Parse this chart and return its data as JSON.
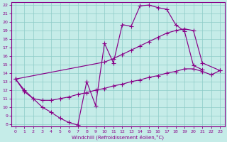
{
  "xlabel": "Windchill (Refroidissement éolien,°C)",
  "xlim": [
    0,
    23
  ],
  "ylim": [
    8,
    22
  ],
  "xticks": [
    0,
    1,
    2,
    3,
    4,
    5,
    6,
    7,
    8,
    9,
    10,
    11,
    12,
    13,
    14,
    15,
    16,
    17,
    18,
    19,
    20,
    21,
    22,
    23
  ],
  "yticks": [
    8,
    9,
    10,
    11,
    12,
    13,
    14,
    15,
    16,
    17,
    18,
    19,
    20,
    21,
    22
  ],
  "bg_color": "#c5ece8",
  "grid_color": "#8eccc8",
  "line_color": "#880088",
  "curve1_x": [
    0,
    1,
    2,
    3,
    4,
    5,
    6,
    7,
    8,
    9,
    10,
    11,
    12,
    13,
    14,
    15,
    16,
    17,
    18,
    19,
    20,
    21
  ],
  "curve1_y": [
    13.3,
    12.0,
    11.0,
    10.0,
    9.4,
    8.7,
    8.2,
    7.9,
    13.0,
    10.2,
    17.5,
    15.2,
    19.7,
    19.5,
    21.9,
    22.0,
    21.7,
    21.5,
    19.7,
    18.9,
    14.9,
    14.4
  ],
  "curve2_x": [
    0,
    10,
    11,
    12,
    13,
    14,
    15,
    16,
    17,
    18,
    19,
    20,
    21,
    23
  ],
  "curve2_y": [
    13.3,
    15.3,
    15.7,
    16.2,
    16.7,
    17.2,
    17.7,
    18.2,
    18.7,
    19.0,
    19.2,
    19.0,
    15.2,
    14.3
  ],
  "curve3_x": [
    0,
    1,
    2,
    3,
    4,
    5,
    6,
    7,
    8,
    9,
    10,
    11,
    12,
    13,
    14,
    15,
    16,
    17,
    18,
    19,
    20,
    21,
    22,
    23
  ],
  "curve3_y": [
    13.3,
    11.8,
    11.0,
    10.8,
    10.8,
    11.0,
    11.2,
    11.5,
    11.7,
    12.0,
    12.2,
    12.5,
    12.7,
    13.0,
    13.2,
    13.5,
    13.7,
    14.0,
    14.2,
    14.5,
    14.5,
    14.2,
    13.8,
    14.3
  ]
}
